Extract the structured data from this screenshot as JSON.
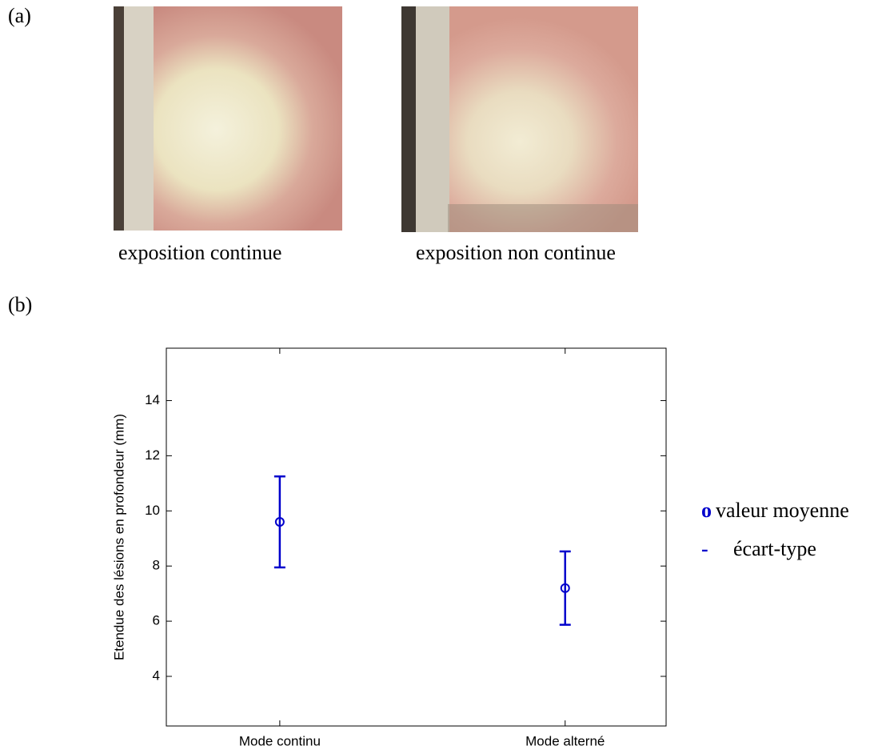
{
  "panels": {
    "a": {
      "label": "(a)",
      "captions": [
        "exposition continue",
        "exposition non continue"
      ]
    },
    "b": {
      "label": "(b)"
    }
  },
  "chart_data": {
    "type": "errorbar",
    "ylabel": "Etendue des lésions en profondeur (mm)",
    "categories": [
      "Mode continu",
      "Mode alterné"
    ],
    "values": [
      9.6,
      7.2
    ],
    "errors": [
      1.65,
      1.33
    ],
    "color": "#0000cc",
    "ylim": [
      2.2,
      15.9
    ],
    "yticks": [
      4,
      6,
      8,
      10,
      12,
      14
    ],
    "grid": false,
    "legend": [
      {
        "symbol": "o",
        "label": "valeur moyenne"
      },
      {
        "symbol": "-",
        "label": "écart-type"
      }
    ]
  }
}
